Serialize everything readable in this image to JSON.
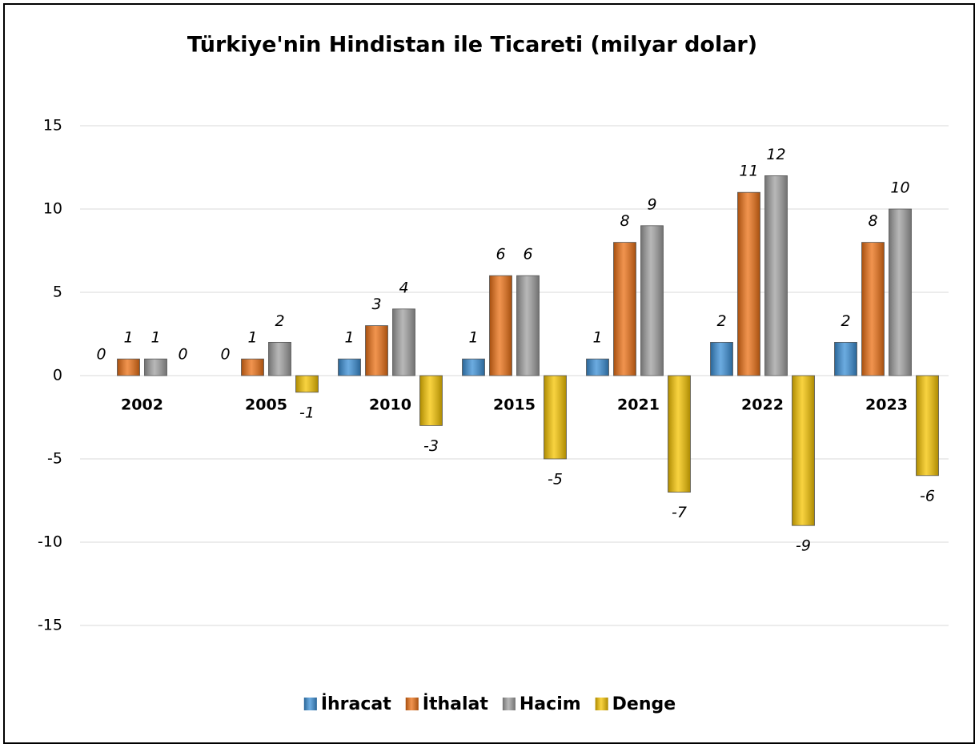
{
  "chart_data": {
    "type": "bar",
    "title": "Türkiye'nin Hindistan ile Ticareti (milyar dolar)",
    "categories": [
      "2002",
      "2005",
      "2010",
      "2015",
      "2021",
      "2022",
      "2023"
    ],
    "series": [
      {
        "name": "İhracat",
        "color": "#3a8fd6",
        "values": [
          0,
          0,
          1,
          1,
          1,
          2,
          2
        ]
      },
      {
        "name": "İthalat",
        "color": "#ec7014",
        "values": [
          1,
          1,
          3,
          6,
          8,
          11,
          8
        ]
      },
      {
        "name": "Hacim",
        "color": "#a0a0a0",
        "values": [
          1,
          2,
          4,
          6,
          9,
          12,
          10
        ]
      },
      {
        "name": "Denge",
        "color": "#f6c400",
        "values": [
          0,
          -1,
          -3,
          -5,
          -7,
          -9,
          -6
        ]
      }
    ],
    "ylim": [
      -15,
      15
    ],
    "yticks": [
      -15,
      -10,
      -5,
      0,
      5,
      10,
      15
    ],
    "grid": true,
    "legend": "bottom"
  }
}
